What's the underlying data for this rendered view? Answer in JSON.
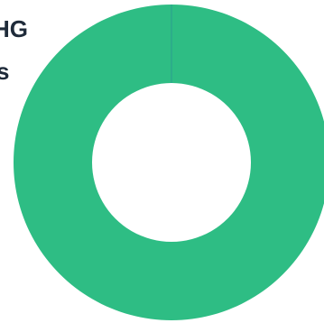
{
  "title_lines": [
    "HG",
    "s"
  ],
  "chart_data": {
    "type": "pie",
    "donut": true,
    "categories": [
      ""
    ],
    "values": [
      100
    ],
    "colors": [
      "#2ebd84"
    ],
    "divider_color": "#2a9d8f"
  }
}
